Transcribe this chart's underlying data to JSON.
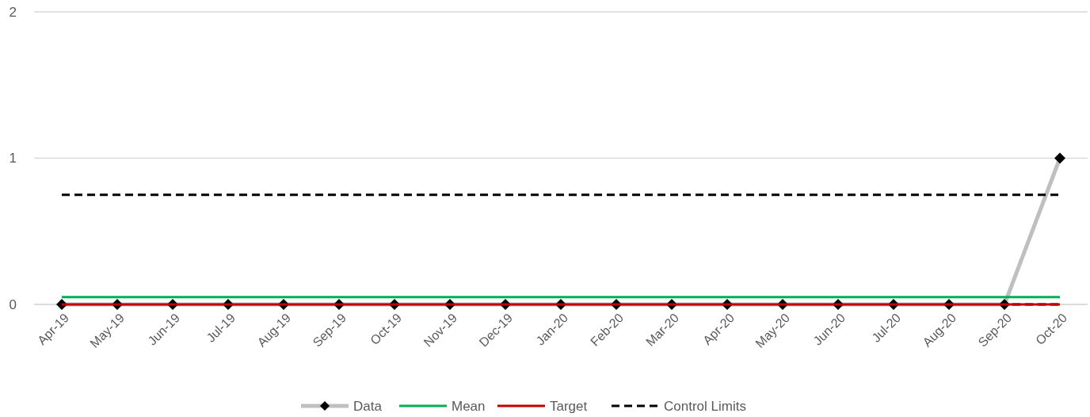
{
  "chart_data": {
    "type": "line",
    "categories": [
      "Apr-19",
      "May-19",
      "Jun-19",
      "Jul-19",
      "Aug-19",
      "Sep-19",
      "Oct-19",
      "Nov-19",
      "Dec-19",
      "Jan-20",
      "Feb-20",
      "Mar-20",
      "Apr-20",
      "May-20",
      "Jun-20",
      "Jul-20",
      "Aug-20",
      "Sep-20",
      "Oct-20"
    ],
    "series": [
      {
        "name": "Data",
        "color": "#bfbfbf",
        "marker": "diamond",
        "values": [
          0,
          0,
          0,
          0,
          0,
          0,
          0,
          0,
          0,
          0,
          0,
          0,
          0,
          0,
          0,
          0,
          0,
          0,
          1
        ]
      },
      {
        "name": "Mean",
        "color": "#00b050",
        "values": [
          0.05,
          0.05,
          0.05,
          0.05,
          0.05,
          0.05,
          0.05,
          0.05,
          0.05,
          0.05,
          0.05,
          0.05,
          0.05,
          0.05,
          0.05,
          0.05,
          0.05,
          0.05,
          0.05
        ]
      },
      {
        "name": "Target",
        "color": "#c00000",
        "values": [
          0,
          0,
          0,
          0,
          0,
          0,
          0,
          0,
          0,
          0,
          0,
          0,
          0,
          0,
          0,
          0,
          0,
          0,
          0
        ]
      },
      {
        "name": "Control Limits",
        "color": "#000000",
        "line_style": "dashed",
        "values": [
          0.75,
          0.75,
          0.75,
          0.75,
          0.75,
          0.75,
          0.75,
          0.75,
          0.75,
          0.75,
          0.75,
          0.75,
          0.75,
          0.75,
          0.75,
          0.75,
          0.75,
          0.75,
          0.75
        ]
      }
    ],
    "ref_lines": [
      {
        "axis": "y",
        "value": 0,
        "color": "#000000",
        "line_style": "dashed"
      }
    ],
    "ylim": [
      0,
      2
    ],
    "yticks": [
      0,
      1,
      2
    ],
    "grid": "y",
    "legend": "bottom"
  }
}
